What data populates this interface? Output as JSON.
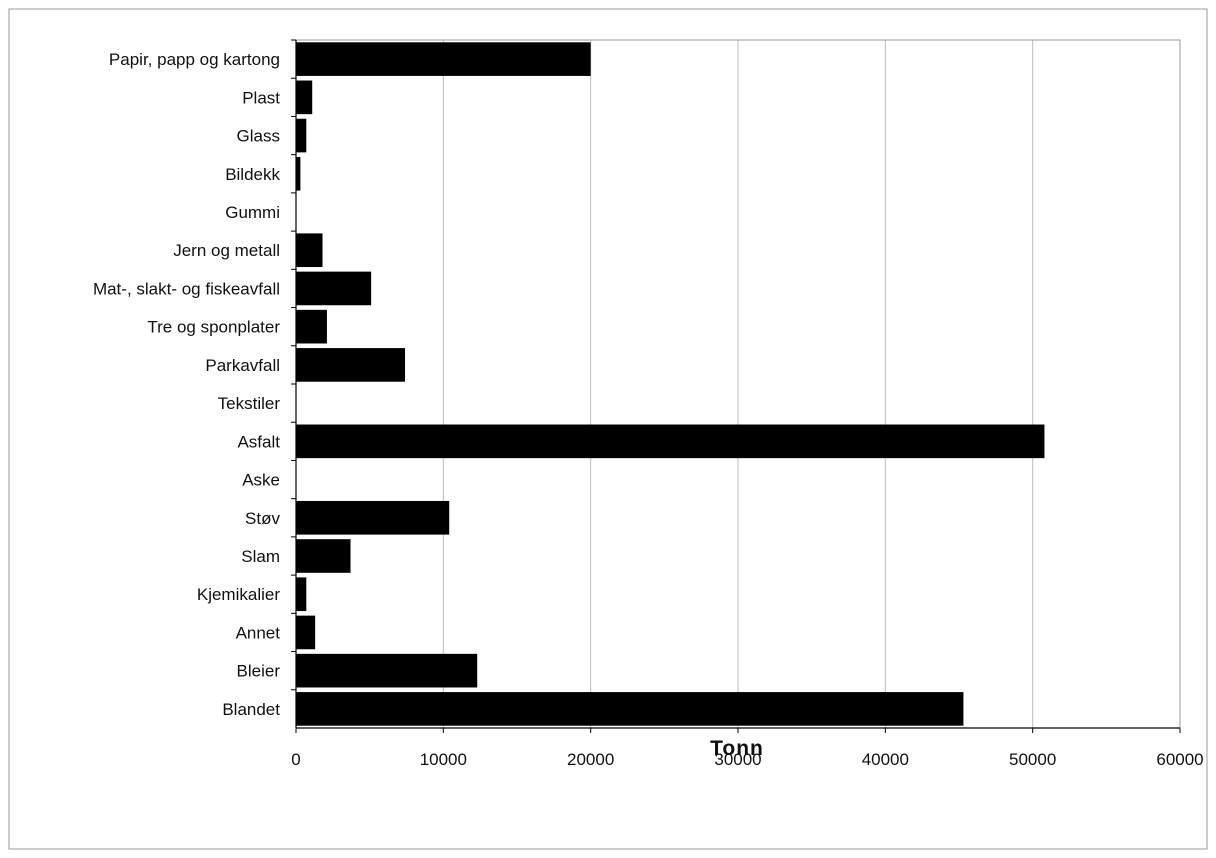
{
  "chart_data": {
    "type": "bar",
    "orientation": "horizontal",
    "categories": [
      "Papir, papp og kartong",
      "Plast",
      "Glass",
      "Bildekk",
      "Gummi",
      "Jern og metall",
      "Mat-, slakt- og fiskeavfall",
      "Tre og sponplater",
      "Parkavfall",
      "Tekstiler",
      "Asfalt",
      "Aske",
      "Støv",
      "Slam",
      "Kjemikalier",
      "Annet",
      "Bleier",
      "Blandet"
    ],
    "values": [
      20000,
      1100,
      700,
      300,
      0,
      1800,
      5100,
      2100,
      7400,
      0,
      50800,
      0,
      10400,
      3700,
      700,
      1300,
      12300,
      45300
    ],
    "title": "",
    "xlabel": "Tonn",
    "ylabel": "",
    "xlim": [
      0,
      60000
    ],
    "xticks": [
      "0",
      "10000",
      "20000",
      "30000",
      "40000",
      "50000",
      "60000"
    ],
    "grid": "vertical",
    "bar_color": "#000000",
    "grid_color": "#bdbdbd",
    "frame_color": "#9a9a9a"
  }
}
